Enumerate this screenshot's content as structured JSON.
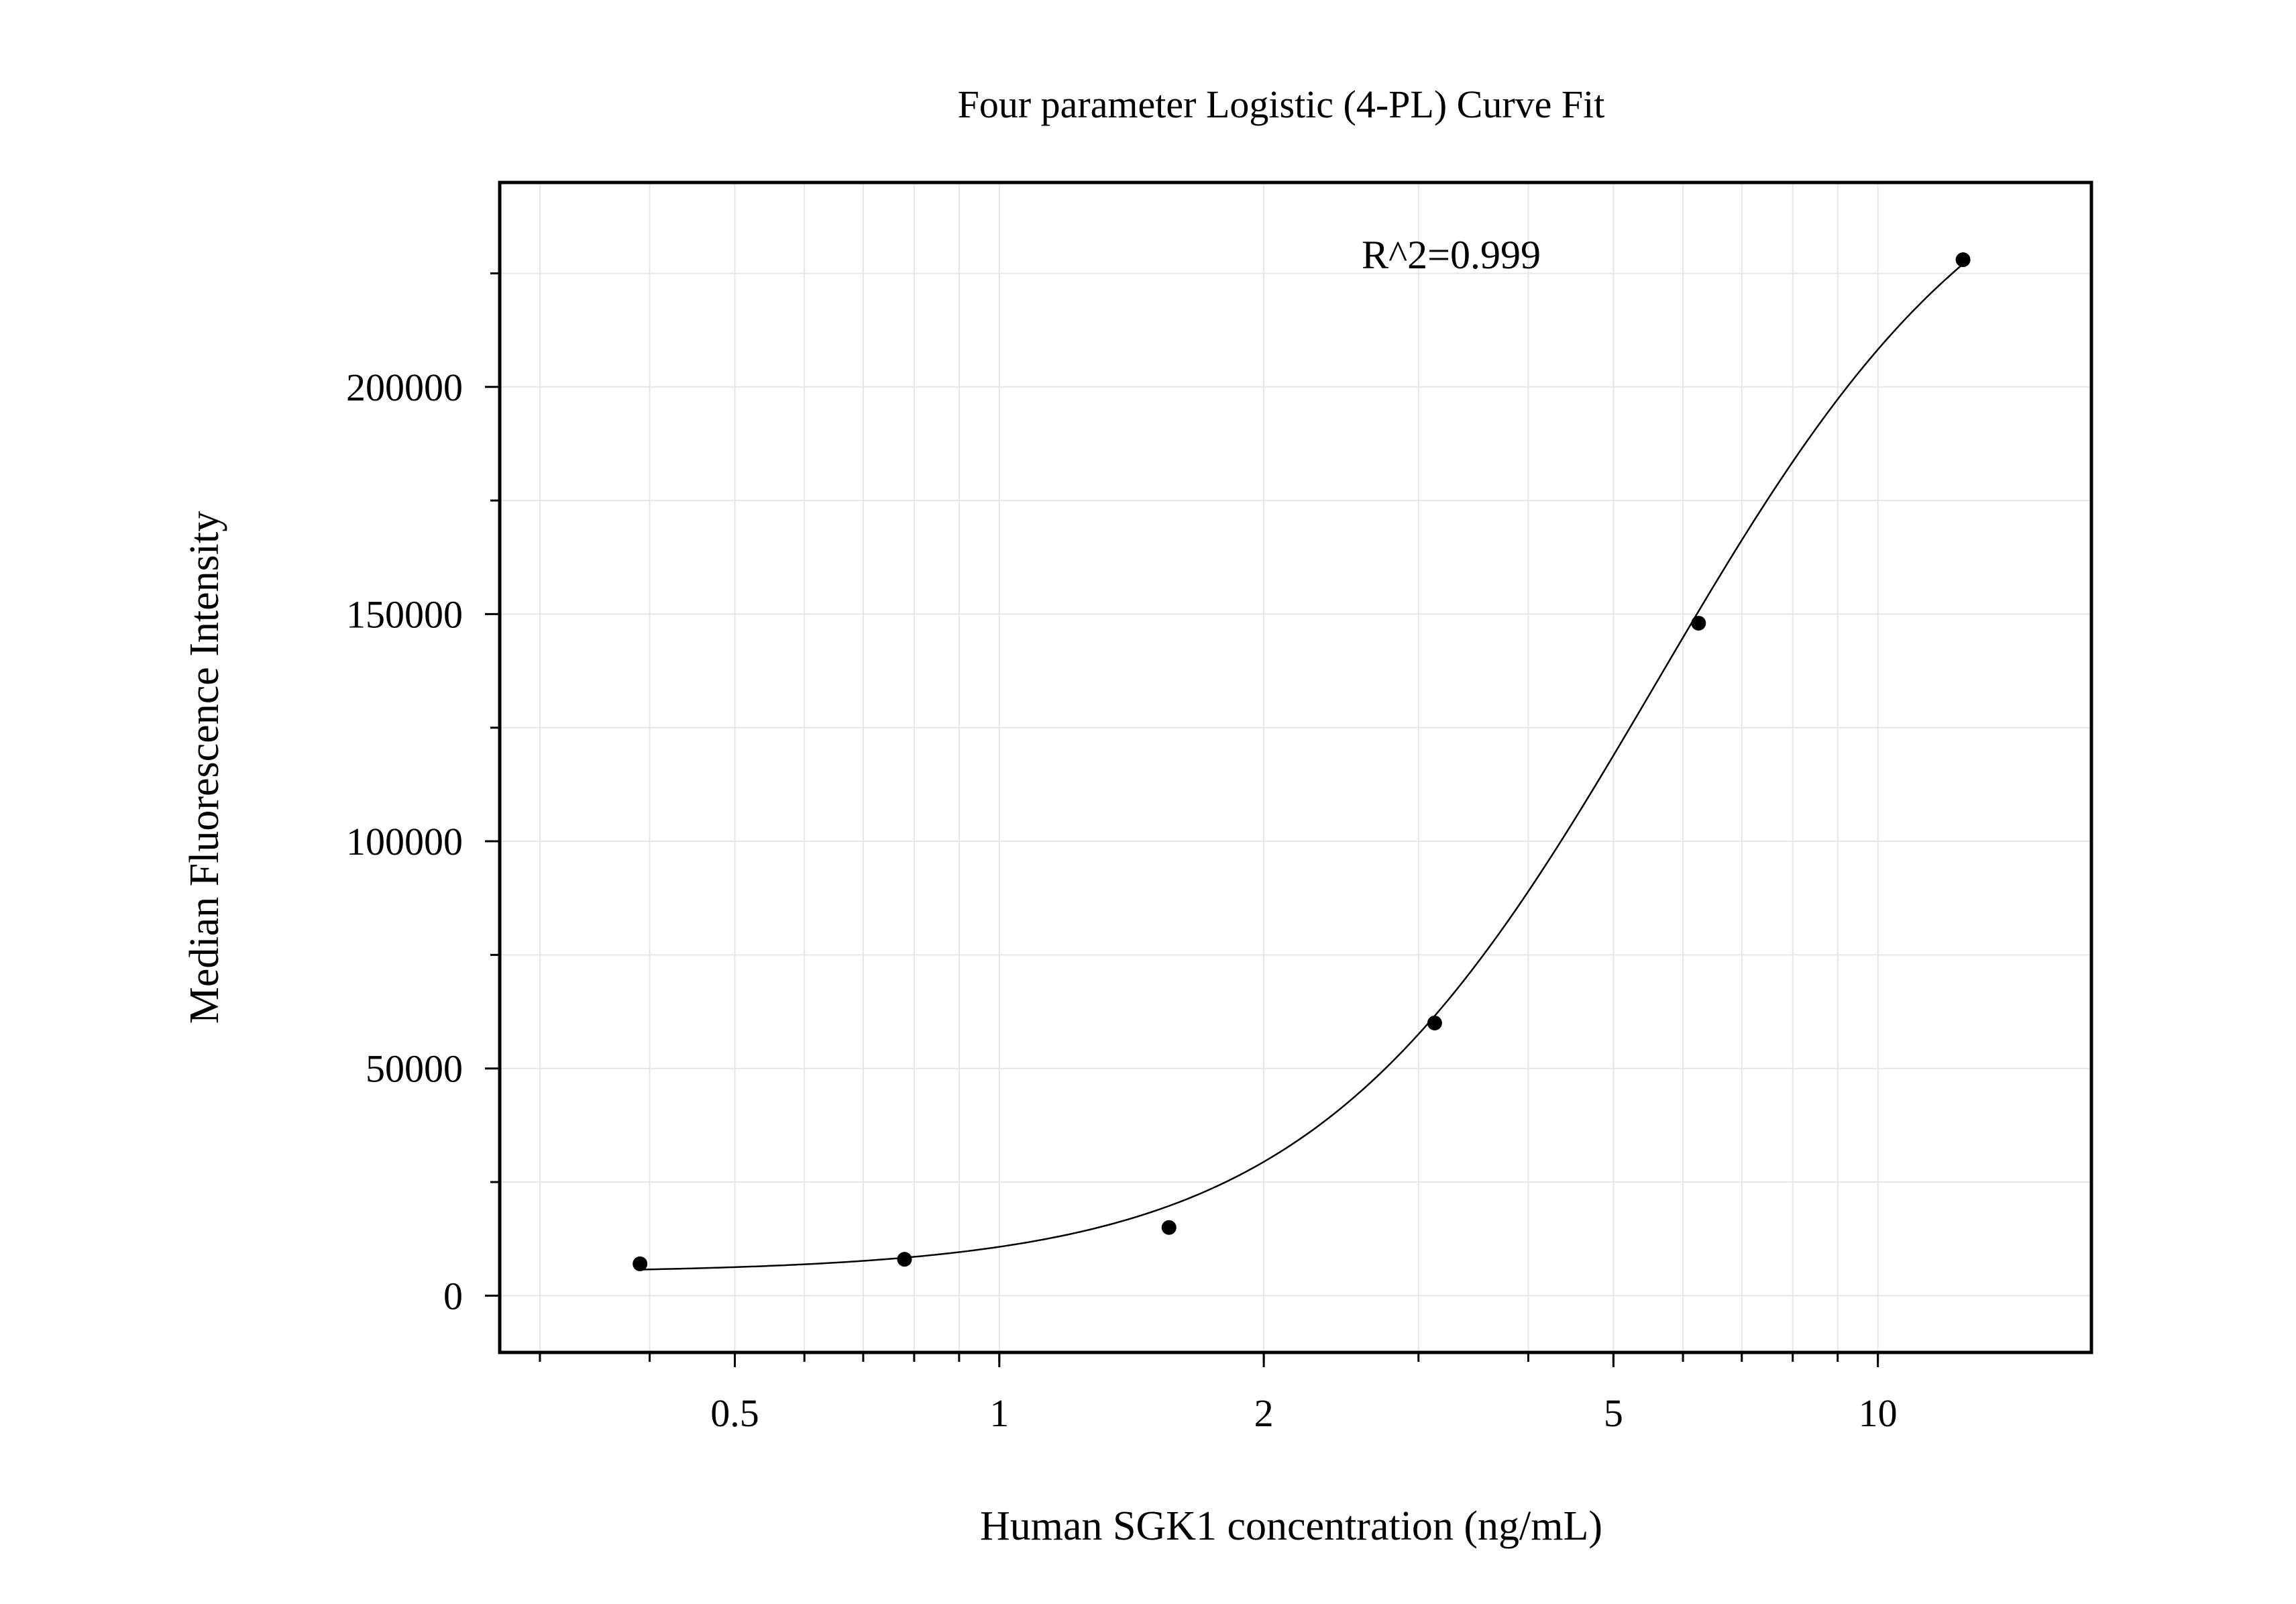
{
  "chart_data": {
    "type": "scatter",
    "title": "Four parameter Logistic (4-PL) Curve Fit",
    "xlabel": "Human SGK1 concentration (ng/mL)",
    "ylabel": "Median Fluorescence Intensity",
    "x_scale": "log",
    "xlim": [
      0.27,
      17.5
    ],
    "ylim": [
      -12500,
      245000
    ],
    "x_ticks": [
      {
        "value": 0.5,
        "label": "0.5"
      },
      {
        "value": 1,
        "label": "1"
      },
      {
        "value": 2,
        "label": "2"
      },
      {
        "value": 5,
        "label": "5"
      },
      {
        "value": 10,
        "label": "10"
      }
    ],
    "y_ticks": [
      {
        "value": 0,
        "label": "0"
      },
      {
        "value": 50000,
        "label": "50000"
      },
      {
        "value": 100000,
        "label": "100000"
      },
      {
        "value": 150000,
        "label": "150000"
      },
      {
        "value": 200000,
        "label": "200000"
      }
    ],
    "grid": true,
    "annotation": "R^2=0.999",
    "points": [
      {
        "x": 0.39,
        "y": 7000
      },
      {
        "x": 0.78,
        "y": 8000
      },
      {
        "x": 1.56,
        "y": 15000
      },
      {
        "x": 3.13,
        "y": 60000
      },
      {
        "x": 6.25,
        "y": 148000
      },
      {
        "x": 12.5,
        "y": 228000
      }
    ],
    "fit": {
      "model": "4PL",
      "x_range": [
        0.39,
        12.5
      ]
    },
    "colors": {
      "marker": "#000000",
      "line": "#000000",
      "grid": "#e6e6e6"
    }
  }
}
